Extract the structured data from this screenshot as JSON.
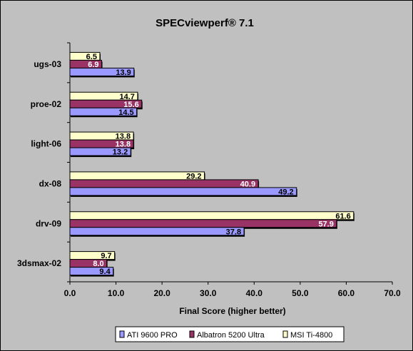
{
  "chart_data": {
    "type": "bar",
    "orientation": "horizontal",
    "title": "SPECviewperf® 7.1",
    "xlabel": "Final Score (higher better)",
    "ylabel": "",
    "xlim": [
      0,
      70
    ],
    "xticks": [
      "0.0",
      "10.0",
      "20.0",
      "30.0",
      "40.0",
      "50.0",
      "60.0",
      "70.0"
    ],
    "categories": [
      "ugs-03",
      "proe-02",
      "light-06",
      "dx-08",
      "drv-09",
      "3dsmax-02"
    ],
    "series": [
      {
        "name": "ATI 9600 PRO",
        "color": "#9999ff",
        "values": [
          13.9,
          14.5,
          13.2,
          49.2,
          37.8,
          9.4
        ],
        "labels": [
          "13.9",
          "14.5",
          "13.2",
          "49.2",
          "37.8",
          "9.4"
        ]
      },
      {
        "name": "Albatron 5200 Ultra",
        "color": "#993366",
        "values": [
          6.9,
          15.6,
          13.8,
          40.9,
          57.9,
          8.0
        ],
        "labels": [
          "6.9",
          "15.6",
          "13.8",
          "40.9",
          "57.9",
          "8.0"
        ]
      },
      {
        "name": "MSI Ti-4800",
        "color": "#ffffcc",
        "values": [
          6.5,
          14.7,
          13.8,
          29.2,
          61.6,
          9.7
        ],
        "labels": [
          "6.5",
          "14.7",
          "13.8",
          "29.2",
          "61.6",
          "9.7"
        ]
      }
    ],
    "grid": false,
    "legend_position": "bottom"
  }
}
